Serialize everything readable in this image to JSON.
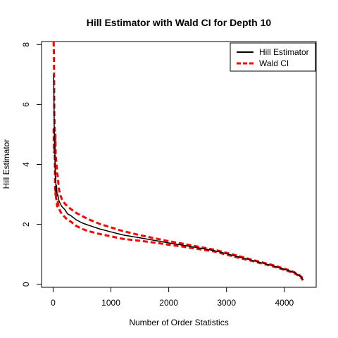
{
  "chart_data": {
    "type": "line",
    "title": "Hill Estimator with Wald CI for Depth 10",
    "xlabel": "Number of Order Statistics",
    "ylabel": "Hill Estimator",
    "xlim": [
      -200,
      4550
    ],
    "ylim": [
      -0.1,
      8.1
    ],
    "x_ticks": [
      0,
      1000,
      2000,
      3000,
      4000
    ],
    "y_ticks": [
      0,
      2,
      4,
      6,
      8
    ],
    "grid": false,
    "legend": {
      "placement": "top-right",
      "entries": [
        {
          "label": "Hill Estimator",
          "color": "#000000",
          "style": "solid"
        },
        {
          "label": "Wald CI",
          "color": "#ff0000",
          "style": "dashed"
        }
      ]
    },
    "series": [
      {
        "name": "Hill Estimator",
        "color": "#000000",
        "style": "solid",
        "x": [
          10,
          15,
          20,
          25,
          30,
          35,
          40,
          45,
          50,
          60,
          70,
          80,
          100,
          120,
          150,
          200,
          250,
          300,
          400,
          500,
          600,
          800,
          1000,
          1200,
          1500,
          1800,
          2000,
          2200,
          2500,
          2800,
          3000,
          3200,
          3400,
          3600,
          3800,
          4000,
          4100,
          4200,
          4250,
          4300,
          4320
        ],
        "y": [
          7.0,
          6.0,
          5.1,
          4.7,
          4.4,
          3.8,
          3.5,
          3.6,
          3.1,
          3.3,
          2.95,
          3.0,
          2.8,
          2.7,
          2.6,
          2.5,
          2.35,
          2.3,
          2.15,
          2.05,
          1.98,
          1.85,
          1.75,
          1.65,
          1.55,
          1.45,
          1.38,
          1.32,
          1.22,
          1.12,
          1.02,
          0.92,
          0.82,
          0.72,
          0.62,
          0.5,
          0.44,
          0.36,
          0.3,
          0.22,
          0.15
        ]
      },
      {
        "name": "Wald CI",
        "color": "#ff0000",
        "style": "dashed",
        "x": [
          10,
          15,
          20,
          25,
          30,
          35,
          40,
          45,
          50,
          60,
          70,
          80,
          100,
          120,
          150,
          200,
          250,
          300,
          400,
          500,
          600,
          800,
          1000,
          1200,
          1500,
          1800,
          2000,
          2200,
          2500,
          2800,
          3000,
          3200,
          3400,
          3600,
          3800,
          4000,
          4100,
          4200,
          4250,
          4300,
          4320
        ],
        "y": [
          8.1,
          7.6,
          5.7,
          5.3,
          4.9,
          4.6,
          5.0,
          4.3,
          4.2,
          4.0,
          3.7,
          3.6,
          3.2,
          3.0,
          2.85,
          2.7,
          2.6,
          2.52,
          2.38,
          2.28,
          2.18,
          2.02,
          1.9,
          1.78,
          1.64,
          1.52,
          1.44,
          1.37,
          1.26,
          1.15,
          1.05,
          0.95,
          0.84,
          0.74,
          0.64,
          0.52,
          0.46,
          0.38,
          0.32,
          0.24,
          0.17
        ]
      },
      {
        "name": "",
        "color": "#ff0000",
        "style": "dashed",
        "x": [
          10,
          15,
          20,
          25,
          30,
          35,
          40,
          45,
          50,
          60,
          70,
          80,
          100,
          120,
          150,
          200,
          250,
          300,
          400,
          500,
          600,
          800,
          1000,
          1200,
          1500,
          1800,
          2000,
          2200,
          2500,
          2800,
          3000,
          3200,
          3400,
          3600,
          3800,
          4000,
          4100,
          4200,
          4250,
          4300,
          4320
        ],
        "y": [
          5.2,
          4.4,
          4.4,
          4.6,
          4.1,
          3.4,
          3.0,
          3.1,
          2.9,
          2.8,
          2.6,
          2.75,
          2.55,
          2.45,
          2.35,
          2.25,
          2.15,
          2.1,
          1.95,
          1.85,
          1.78,
          1.68,
          1.6,
          1.52,
          1.45,
          1.38,
          1.32,
          1.27,
          1.18,
          1.09,
          0.99,
          0.89,
          0.8,
          0.7,
          0.6,
          0.48,
          0.42,
          0.34,
          0.28,
          0.2,
          0.13
        ]
      }
    ]
  }
}
